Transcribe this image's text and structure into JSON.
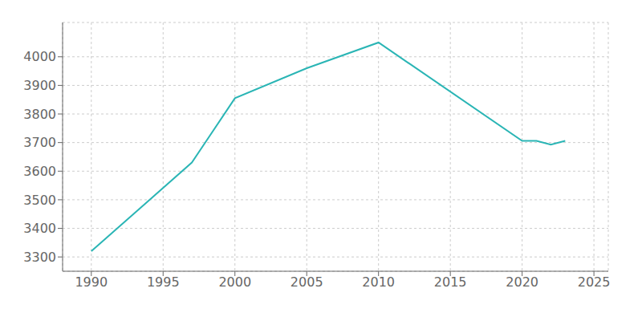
{
  "chart_data": {
    "type": "line",
    "x": [
      1990,
      1997,
      2000,
      2005,
      2010,
      2020,
      2021,
      2022,
      2023
    ],
    "values": [
      3320,
      3630,
      3855,
      3960,
      4050,
      3706,
      3706,
      3693,
      3706
    ],
    "color": "#2ab5b5",
    "xlim": [
      1988,
      2026
    ],
    "ylim": [
      3250,
      4120
    ],
    "xticks": [
      1990,
      1995,
      2000,
      2005,
      2010,
      2015,
      2020,
      2025
    ],
    "yticks": [
      3300,
      3400,
      3500,
      3600,
      3700,
      3800,
      3900,
      4000
    ],
    "grid": true
  }
}
